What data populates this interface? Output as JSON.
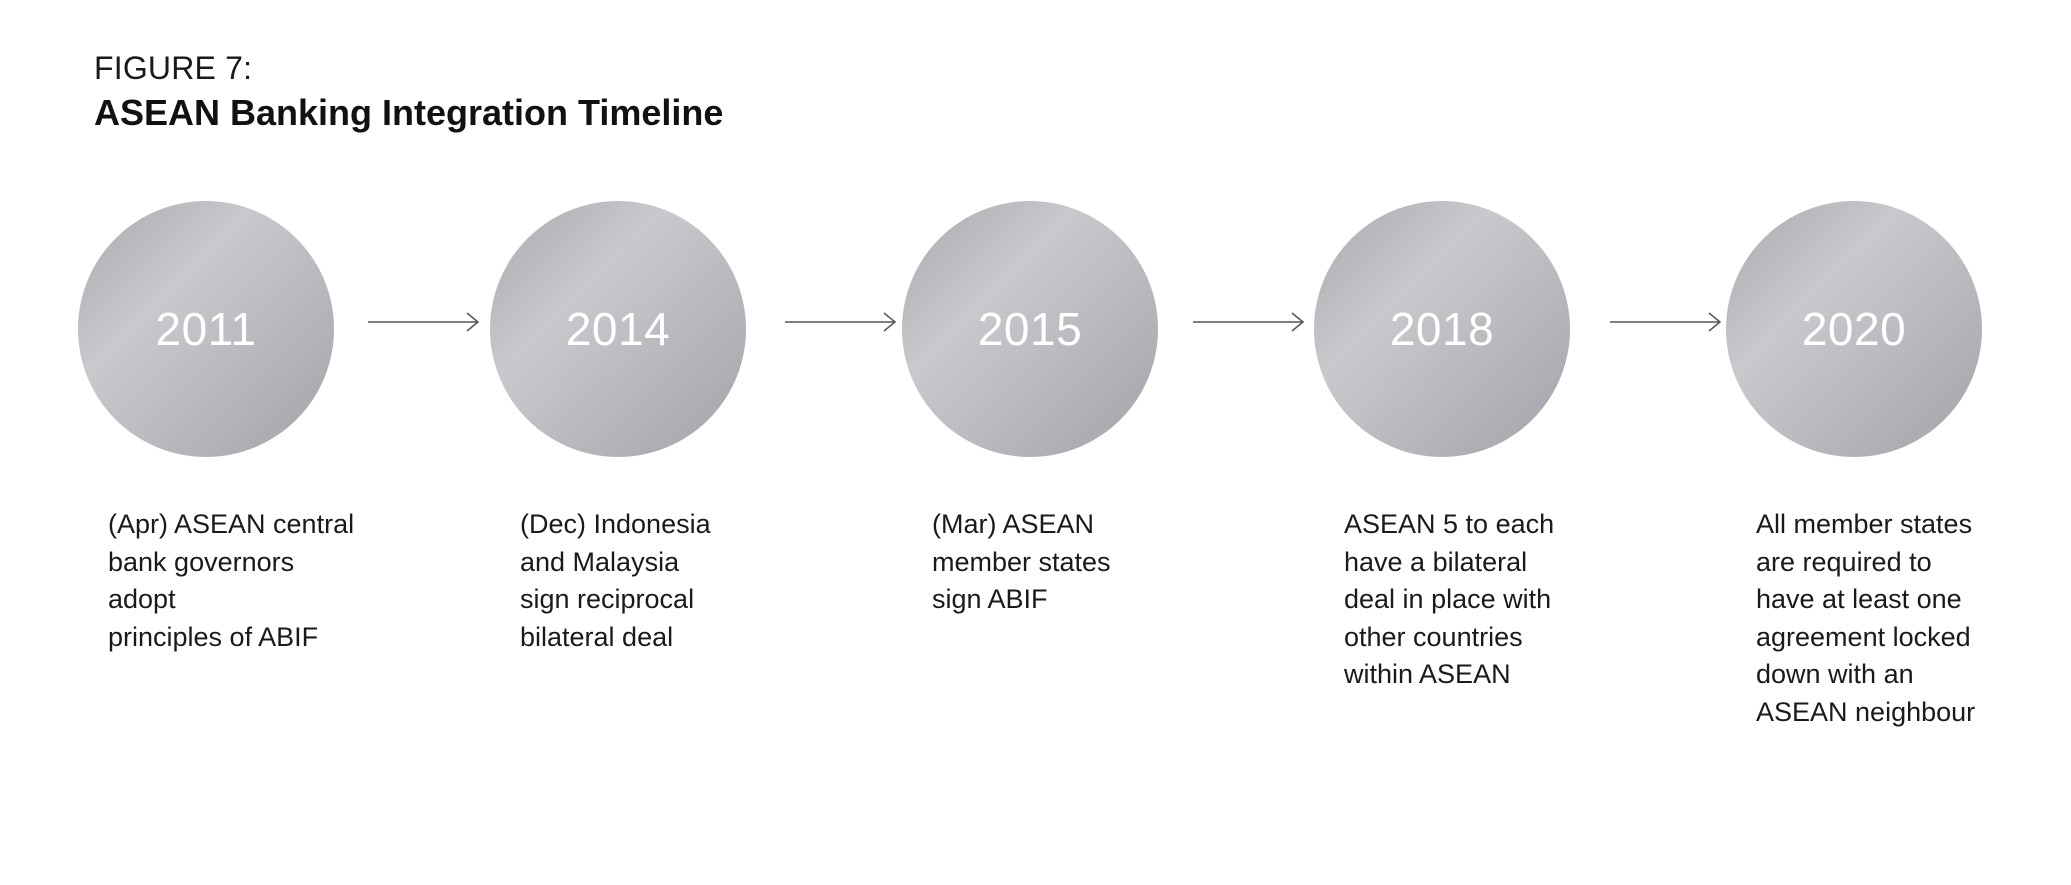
{
  "header": {
    "figure_label": "FIGURE 7:",
    "title": "ASEAN Banking Integration Timeline"
  },
  "colors": {
    "circle_light": "#c9c9cd",
    "circle_dark": "#a3a2a8",
    "arrow": "#555555",
    "text": "#1a1a1a"
  },
  "events": [
    {
      "year": "2011",
      "description": "(Apr) ASEAN central\nbank governors adopt\nprinciples of ABIF"
    },
    {
      "year": "2014",
      "description": "(Dec) Indonesia\nand Malaysia\nsign reciprocal\nbilateral deal"
    },
    {
      "year": "2015",
      "description": "(Mar) ASEAN\nmember states\nsign ABIF"
    },
    {
      "year": "2018",
      "description": "ASEAN 5 to each\nhave a bilateral\ndeal in place with\nother countries\nwithin ASEAN"
    },
    {
      "year": "2020",
      "description": "All member states\nare required to\nhave at least one\nagreement locked\ndown with an\nASEAN neighbour"
    }
  ]
}
